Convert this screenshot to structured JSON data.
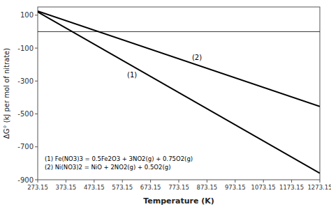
{
  "chart_data": {
    "type": "line",
    "xlabel": "Temperature (K)",
    "ylabel": "ΔG° (kJ per mol of nitrate)",
    "x": [
      273.15,
      1273.15
    ],
    "series": [
      {
        "name": "(1)  Fe(NO3)3 = 0.5Fe2O3 + 3NO2(g) + 0.75O2(g)",
        "color": "black",
        "values": [
          120,
          -860
        ]
      },
      {
        "name": "(2)  Ni(NO3)2 = NiO + 2NO2(g) + 0.5O2(g)",
        "color": "black",
        "values": [
          125,
          -455
        ]
      }
    ],
    "annotations": [
      {
        "text": "(1)",
        "x": 590,
        "y": -262
      },
      {
        "text": "(2)",
        "x": 820,
        "y": -158
      }
    ],
    "hlines": [
      0
    ],
    "xlim": [
      273.15,
      1273.15
    ],
    "ylim": [
      -900,
      150
    ],
    "xticks": [
      273.15,
      373.15,
      473.15,
      573.15,
      673.15,
      773.15,
      873.15,
      973.15,
      1073.15,
      1173.15,
      1273.15
    ],
    "yticks": [
      -900,
      -700,
      -500,
      -300,
      -100,
      100
    ],
    "grid": false,
    "legend": "lower left"
  }
}
